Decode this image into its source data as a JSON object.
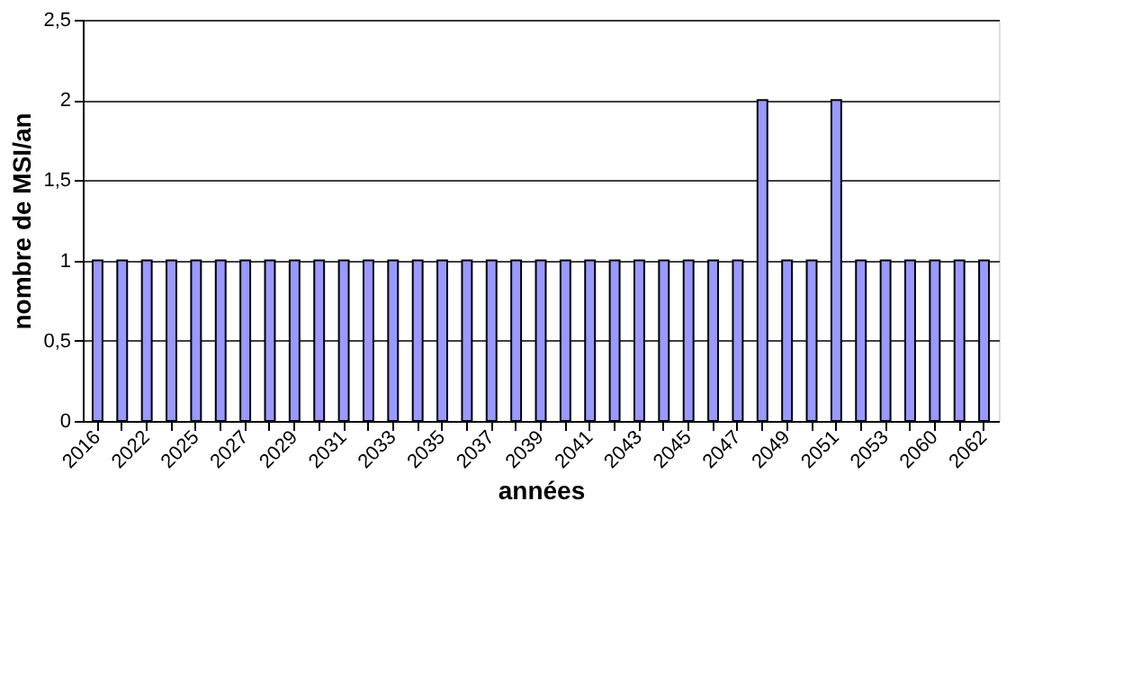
{
  "chart_data": {
    "type": "bar",
    "xlabel": "années",
    "ylabel": "nombre de MSI/an",
    "categories": [
      "2016",
      null,
      "2022",
      null,
      "2025",
      null,
      "2027",
      null,
      "2029",
      null,
      "2031",
      null,
      "2033",
      null,
      "2035",
      null,
      "2037",
      null,
      "2039",
      null,
      "2041",
      null,
      "2043",
      null,
      "2045",
      null,
      "2047",
      null,
      "2049",
      null,
      "2051",
      null,
      "2053",
      null,
      "2060",
      null,
      "2062"
    ],
    "values": [
      1,
      1,
      1,
      1,
      1,
      1,
      1,
      1,
      1,
      1,
      1,
      1,
      1,
      1,
      1,
      1,
      1,
      1,
      1,
      1,
      1,
      1,
      1,
      1,
      1,
      1,
      1,
      2,
      1,
      1,
      2,
      1,
      1,
      1,
      1,
      1,
      1
    ],
    "color": "#9999ff",
    "ylim": [
      0,
      2.5
    ],
    "yticks": [
      0,
      {
        "value": 0.5,
        "label": "0,5"
      },
      1,
      {
        "value": 1.5,
        "label": "1,5"
      },
      2,
      {
        "value": 2.5,
        "label": "2,5"
      }
    ],
    "grid": "y"
  }
}
